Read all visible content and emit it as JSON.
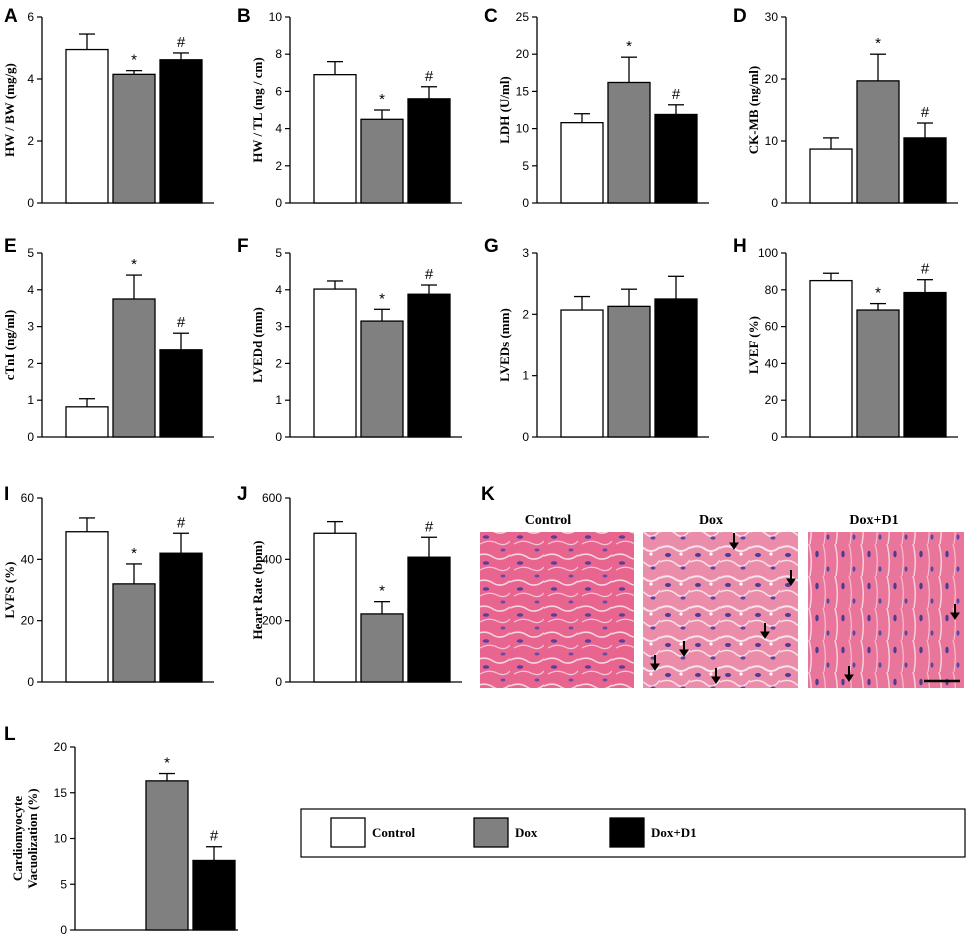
{
  "colors": {
    "Control": "#ffffff",
    "Dox": "#808080",
    "Dox+D1": "#000000"
  },
  "legend": [
    {
      "label": "Control",
      "color": "#ffffff"
    },
    {
      "label": "Dox",
      "color": "#808080"
    },
    {
      "label": "Dox+D1",
      "color": "#000000"
    }
  ],
  "chart_data": [
    {
      "panel": "A",
      "type": "bar",
      "categories": [
        "Control",
        "Dox",
        "Dox+D1"
      ],
      "values": [
        4.95,
        4.15,
        4.62
      ],
      "errors": [
        0.5,
        0.12,
        0.22
      ],
      "marks": [
        "",
        "*",
        "#"
      ],
      "ylabel": "HW / BW (mg/g)",
      "ylim": [
        0,
        6
      ],
      "yticks": [
        0,
        2,
        4,
        6
      ]
    },
    {
      "panel": "B",
      "type": "bar",
      "categories": [
        "Control",
        "Dox",
        "Dox+D1"
      ],
      "values": [
        6.9,
        4.5,
        5.6
      ],
      "errors": [
        0.7,
        0.5,
        0.65
      ],
      "marks": [
        "",
        "*",
        "#"
      ],
      "ylabel": "HW / TL (mg / cm)",
      "ylim": [
        0,
        10
      ],
      "yticks": [
        0,
        2,
        4,
        6,
        8,
        10
      ]
    },
    {
      "panel": "C",
      "type": "bar",
      "categories": [
        "Control",
        "Dox",
        "Dox+D1"
      ],
      "values": [
        10.8,
        16.2,
        11.9
      ],
      "errors": [
        1.2,
        3.4,
        1.3
      ],
      "marks": [
        "",
        "*",
        "#"
      ],
      "ylabel": "LDH (U/ml)",
      "ylim": [
        0,
        25
      ],
      "yticks": [
        0,
        5,
        10,
        15,
        20,
        25
      ]
    },
    {
      "panel": "D",
      "type": "bar",
      "categories": [
        "Control",
        "Dox",
        "Dox+D1"
      ],
      "values": [
        8.7,
        19.7,
        10.5
      ],
      "errors": [
        1.8,
        4.3,
        2.4
      ],
      "marks": [
        "",
        "*",
        "#"
      ],
      "ylabel": "CK-MB (ng/ml)",
      "ylim": [
        0,
        30
      ],
      "yticks": [
        0,
        10,
        20,
        30
      ]
    },
    {
      "panel": "E",
      "type": "bar",
      "categories": [
        "Control",
        "Dox",
        "Dox+D1"
      ],
      "values": [
        0.82,
        3.75,
        2.37
      ],
      "errors": [
        0.22,
        0.65,
        0.45
      ],
      "marks": [
        "",
        "*",
        "#"
      ],
      "ylabel": "cTnI (ng/ml)",
      "ylim": [
        0,
        5
      ],
      "yticks": [
        0,
        1,
        2,
        3,
        4,
        5
      ]
    },
    {
      "panel": "F",
      "type": "bar",
      "categories": [
        "Control",
        "Dox",
        "Dox+D1"
      ],
      "values": [
        4.02,
        3.15,
        3.88
      ],
      "errors": [
        0.22,
        0.32,
        0.25
      ],
      "marks": [
        "",
        "*",
        "#"
      ],
      "ylabel": "LVEDd (mm)",
      "ylim": [
        0,
        5
      ],
      "yticks": [
        0,
        1,
        2,
        3,
        4,
        5
      ]
    },
    {
      "panel": "G",
      "type": "bar",
      "categories": [
        "Control",
        "Dox",
        "Dox+D1"
      ],
      "values": [
        2.07,
        2.13,
        2.25
      ],
      "errors": [
        0.22,
        0.28,
        0.37
      ],
      "marks": [
        "",
        "",
        ""
      ],
      "ylabel": "LVEDs (mm)",
      "ylim": [
        0,
        3
      ],
      "yticks": [
        0,
        1,
        2,
        3
      ]
    },
    {
      "panel": "H",
      "type": "bar",
      "categories": [
        "Control",
        "Dox",
        "Dox+D1"
      ],
      "values": [
        85,
        69,
        78.5
      ],
      "errors": [
        4,
        3.5,
        7
      ],
      "marks": [
        "",
        "*",
        "#"
      ],
      "ylabel": "LVEF (%)",
      "ylim": [
        0,
        100
      ],
      "yticks": [
        0,
        20,
        40,
        60,
        80,
        100
      ]
    },
    {
      "panel": "I",
      "type": "bar",
      "categories": [
        "Control",
        "Dox",
        "Dox+D1"
      ],
      "values": [
        49,
        32,
        42
      ],
      "errors": [
        4.5,
        6.5,
        6.5
      ],
      "marks": [
        "",
        "*",
        "#"
      ],
      "ylabel": "LVFS (%)",
      "ylim": [
        0,
        60
      ],
      "yticks": [
        0,
        20,
        40,
        60
      ]
    },
    {
      "panel": "J",
      "type": "bar",
      "categories": [
        "Control",
        "Dox",
        "Dox+D1"
      ],
      "values": [
        485,
        222,
        407
      ],
      "errors": [
        38,
        40,
        65
      ],
      "marks": [
        "",
        "*",
        "#"
      ],
      "ylabel": "Heart Rate (bpm)",
      "ylim": [
        0,
        600
      ],
      "yticks": [
        0,
        200,
        400,
        600
      ]
    },
    {
      "panel": "L",
      "type": "bar",
      "categories": [
        "Control",
        "Dox",
        "Dox+D1"
      ],
      "values": [
        0,
        16.3,
        7.6
      ],
      "errors": [
        0,
        0.8,
        1.5
      ],
      "marks": [
        "",
        "*",
        "#"
      ],
      "ylabel": "Cardiomyocyte Vacuolization (%)",
      "ylabel_lines": [
        "Cardiomyocyte",
        "Vacuolization (%)"
      ],
      "ylim": [
        0,
        20
      ],
      "yticks": [
        0,
        5,
        10,
        15,
        20
      ]
    }
  ],
  "histology": {
    "panel": "K",
    "titles": [
      "Control",
      "Dox",
      "Dox+D1"
    ]
  }
}
